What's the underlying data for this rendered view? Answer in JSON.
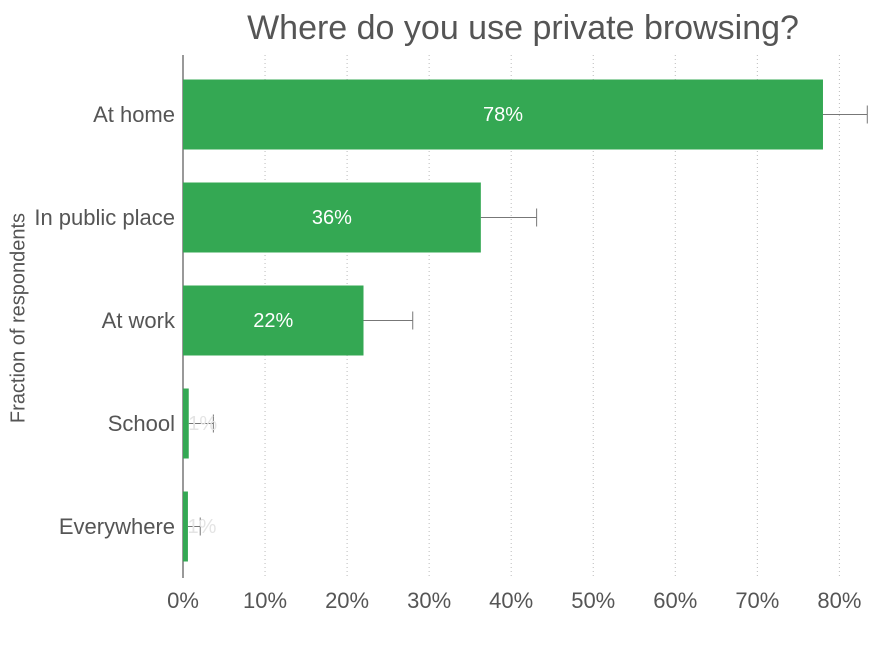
{
  "chart_data": {
    "type": "bar",
    "orientation": "horizontal",
    "title": "Where do you use private browsing?",
    "ylabel": "Fraction of respondents",
    "categories": [
      "At home",
      "In public place",
      "At work",
      "School",
      "Everywhere"
    ],
    "values": [
      78,
      36.3,
      22,
      0.7,
      0.6
    ],
    "value_labels": [
      "78%",
      "36%",
      "22%",
      "1%",
      "1%"
    ],
    "errors": [
      5.4,
      6.8,
      6,
      3,
      1.5
    ],
    "color": "#34a853",
    "xlim": [
      0,
      83
    ],
    "xticks": [
      {
        "value": 0,
        "label": "0%"
      },
      {
        "value": 10,
        "label": "10%"
      },
      {
        "value": 20,
        "label": "20%"
      },
      {
        "value": 30,
        "label": "30%"
      },
      {
        "value": 40,
        "label": "40%"
      },
      {
        "value": 50,
        "label": "50%"
      },
      {
        "value": 60,
        "label": "60%"
      },
      {
        "value": 70,
        "label": "70%"
      },
      {
        "value": 80,
        "label": "80%"
      }
    ],
    "grid": true
  }
}
